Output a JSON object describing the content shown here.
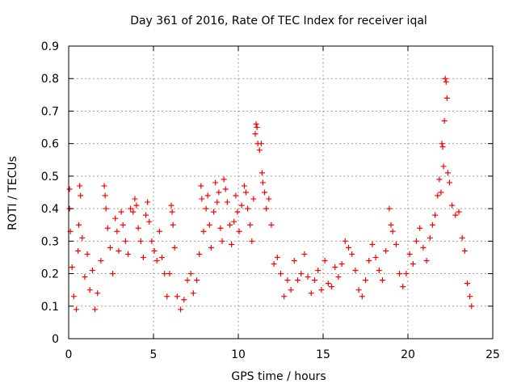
{
  "chart_data": {
    "type": "scatter",
    "title": "Day 361 of 2016, Rate Of TEC Index for receiver iqal",
    "xlabel": "GPS time / hours",
    "ylabel": "ROTI / TECUs",
    "xlim": [
      0,
      25
    ],
    "ylim": [
      0,
      0.9
    ],
    "xticks": [
      "0",
      "5",
      "10",
      "15",
      "20",
      "25"
    ],
    "yticks": [
      "0",
      "0.1",
      "0.2",
      "0.3",
      "0.4",
      "0.5",
      "0.6",
      "0.7",
      "0.8",
      "0.9"
    ],
    "grid": true,
    "marker": "+",
    "color": "#ff0000",
    "series": [
      {
        "points": [
          [
            0.05,
            0.46
          ],
          [
            0.05,
            0.4
          ],
          [
            0.1,
            0.33
          ],
          [
            0.2,
            0.22
          ],
          [
            0.3,
            0.13
          ],
          [
            0.45,
            0.09
          ],
          [
            0.55,
            0.27
          ],
          [
            0.6,
            0.35
          ],
          [
            0.65,
            0.47
          ],
          [
            0.7,
            0.44
          ],
          [
            0.8,
            0.31
          ],
          [
            0.95,
            0.19
          ],
          [
            1.1,
            0.26
          ],
          [
            1.25,
            0.15
          ],
          [
            1.4,
            0.21
          ],
          [
            1.55,
            0.09
          ],
          [
            1.7,
            0.14
          ],
          [
            1.9,
            0.24
          ],
          [
            2.1,
            0.47
          ],
          [
            2.15,
            0.44
          ],
          [
            2.2,
            0.4
          ],
          [
            2.3,
            0.34
          ],
          [
            2.45,
            0.28
          ],
          [
            2.6,
            0.2
          ],
          [
            2.75,
            0.37
          ],
          [
            2.85,
            0.33
          ],
          [
            2.95,
            0.27
          ],
          [
            3.1,
            0.39
          ],
          [
            3.2,
            0.35
          ],
          [
            3.35,
            0.3
          ],
          [
            3.5,
            0.26
          ],
          [
            3.65,
            0.4
          ],
          [
            3.8,
            0.39
          ],
          [
            3.9,
            0.43
          ],
          [
            4.0,
            0.41
          ],
          [
            4.1,
            0.34
          ],
          [
            4.25,
            0.3
          ],
          [
            4.4,
            0.25
          ],
          [
            4.55,
            0.38
          ],
          [
            4.65,
            0.42
          ],
          [
            4.75,
            0.36
          ],
          [
            4.9,
            0.3
          ],
          [
            5.05,
            0.27
          ],
          [
            5.2,
            0.24
          ],
          [
            5.35,
            0.33
          ],
          [
            5.5,
            0.25
          ],
          [
            5.65,
            0.2
          ],
          [
            5.8,
            0.13
          ],
          [
            5.95,
            0.2
          ],
          [
            6.05,
            0.41
          ],
          [
            6.1,
            0.39
          ],
          [
            6.15,
            0.35
          ],
          [
            6.25,
            0.28
          ],
          [
            6.4,
            0.13
          ],
          [
            6.6,
            0.09
          ],
          [
            6.8,
            0.12
          ],
          [
            7.0,
            0.18
          ],
          [
            7.2,
            0.2
          ],
          [
            7.35,
            0.14
          ],
          [
            7.55,
            0.18
          ],
          [
            7.7,
            0.26
          ],
          [
            7.8,
            0.47
          ],
          [
            7.85,
            0.43
          ],
          [
            7.95,
            0.33
          ],
          [
            8.1,
            0.4
          ],
          [
            8.2,
            0.44
          ],
          [
            8.3,
            0.35
          ],
          [
            8.4,
            0.28
          ],
          [
            8.55,
            0.39
          ],
          [
            8.65,
            0.48
          ],
          [
            8.75,
            0.42
          ],
          [
            8.85,
            0.45
          ],
          [
            8.95,
            0.34
          ],
          [
            9.05,
            0.3
          ],
          [
            9.15,
            0.49
          ],
          [
            9.25,
            0.46
          ],
          [
            9.35,
            0.42
          ],
          [
            9.5,
            0.35
          ],
          [
            9.6,
            0.29
          ],
          [
            9.75,
            0.36
          ],
          [
            9.85,
            0.44
          ],
          [
            9.95,
            0.39
          ],
          [
            10.05,
            0.33
          ],
          [
            10.2,
            0.41
          ],
          [
            10.35,
            0.47
          ],
          [
            10.45,
            0.45
          ],
          [
            10.55,
            0.4
          ],
          [
            10.7,
            0.35
          ],
          [
            10.8,
            0.3
          ],
          [
            10.9,
            0.43
          ],
          [
            11.0,
            0.63
          ],
          [
            11.05,
            0.66
          ],
          [
            11.1,
            0.65
          ],
          [
            11.15,
            0.6
          ],
          [
            11.25,
            0.58
          ],
          [
            11.35,
            0.6
          ],
          [
            11.4,
            0.51
          ],
          [
            11.45,
            0.48
          ],
          [
            11.55,
            0.45
          ],
          [
            11.65,
            0.4
          ],
          [
            11.8,
            0.43
          ],
          [
            11.95,
            0.35
          ],
          [
            12.1,
            0.23
          ],
          [
            12.3,
            0.25
          ],
          [
            12.5,
            0.2
          ],
          [
            12.7,
            0.13
          ],
          [
            12.9,
            0.18
          ],
          [
            13.1,
            0.15
          ],
          [
            13.3,
            0.24
          ],
          [
            13.5,
            0.18
          ],
          [
            13.7,
            0.2
          ],
          [
            13.9,
            0.26
          ],
          [
            14.1,
            0.19
          ],
          [
            14.3,
            0.14
          ],
          [
            14.5,
            0.18
          ],
          [
            14.7,
            0.21
          ],
          [
            14.9,
            0.15
          ],
          [
            15.1,
            0.24
          ],
          [
            15.3,
            0.17
          ],
          [
            15.5,
            0.16
          ],
          [
            15.7,
            0.22
          ],
          [
            15.9,
            0.19
          ],
          [
            16.1,
            0.23
          ],
          [
            16.3,
            0.3
          ],
          [
            16.5,
            0.28
          ],
          [
            16.7,
            0.26
          ],
          [
            16.9,
            0.21
          ],
          [
            17.1,
            0.15
          ],
          [
            17.3,
            0.13
          ],
          [
            17.5,
            0.18
          ],
          [
            17.7,
            0.24
          ],
          [
            17.9,
            0.29
          ],
          [
            18.1,
            0.25
          ],
          [
            18.3,
            0.21
          ],
          [
            18.5,
            0.18
          ],
          [
            18.7,
            0.27
          ],
          [
            18.9,
            0.4
          ],
          [
            19.0,
            0.35
          ],
          [
            19.1,
            0.33
          ],
          [
            19.3,
            0.29
          ],
          [
            19.5,
            0.2
          ],
          [
            19.7,
            0.16
          ],
          [
            19.9,
            0.2
          ],
          [
            20.1,
            0.26
          ],
          [
            20.3,
            0.23
          ],
          [
            20.5,
            0.3
          ],
          [
            20.7,
            0.34
          ],
          [
            20.9,
            0.28
          ],
          [
            21.1,
            0.24
          ],
          [
            21.3,
            0.31
          ],
          [
            21.45,
            0.35
          ],
          [
            21.6,
            0.38
          ],
          [
            21.75,
            0.44
          ],
          [
            21.85,
            0.49
          ],
          [
            21.95,
            0.45
          ],
          [
            22.0,
            0.6
          ],
          [
            22.05,
            0.59
          ],
          [
            22.1,
            0.53
          ],
          [
            22.15,
            0.67
          ],
          [
            22.2,
            0.8
          ],
          [
            22.25,
            0.79
          ],
          [
            22.3,
            0.74
          ],
          [
            22.35,
            0.51
          ],
          [
            22.45,
            0.48
          ],
          [
            22.6,
            0.41
          ],
          [
            22.8,
            0.38
          ],
          [
            23.0,
            0.39
          ],
          [
            23.2,
            0.31
          ],
          [
            23.35,
            0.27
          ],
          [
            23.5,
            0.17
          ],
          [
            23.65,
            0.13
          ],
          [
            23.75,
            0.1
          ]
        ]
      }
    ]
  }
}
